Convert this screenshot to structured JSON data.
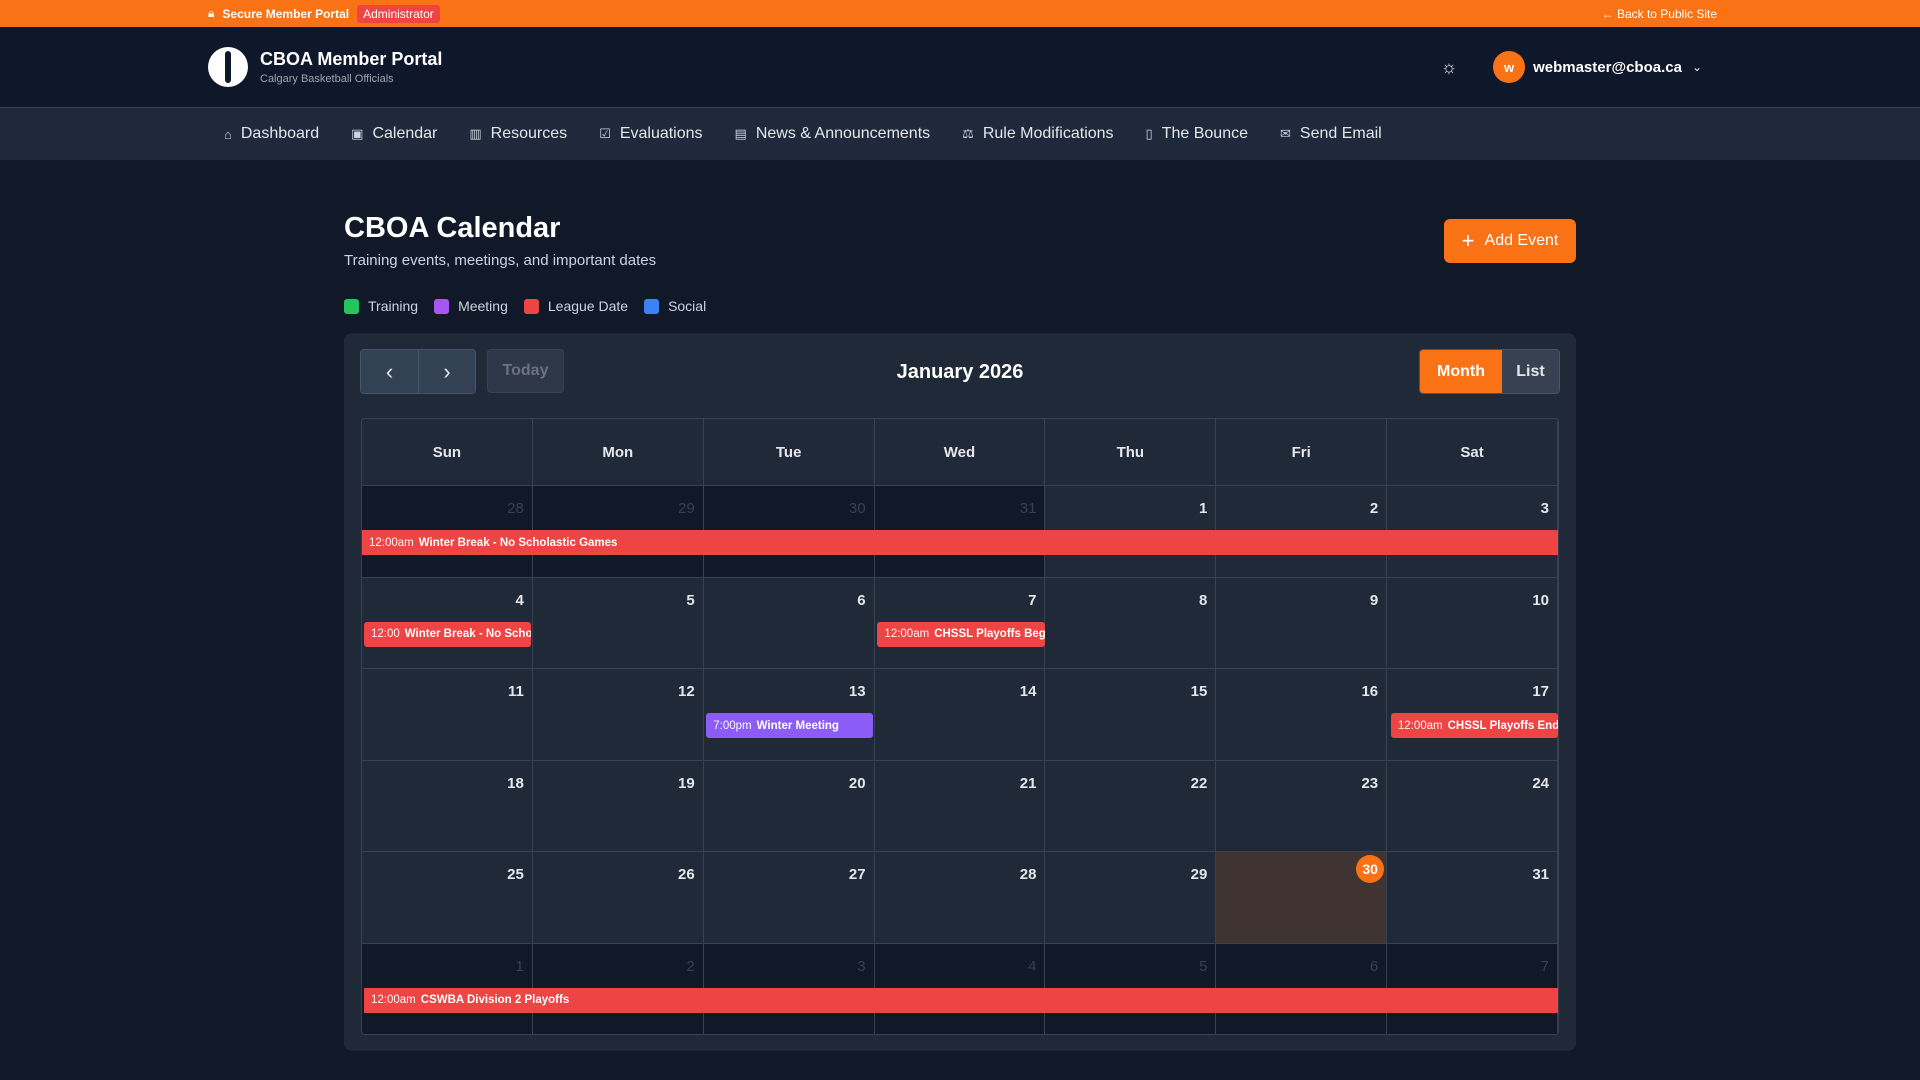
{
  "topbar": {
    "lock_icon": "lock-icon",
    "label": "Secure Member Portal",
    "role_badge": "Administrator",
    "back_link": "← Back to Public Site"
  },
  "header": {
    "title": "CBOA Member Portal",
    "subtitle": "Calgary Basketball Officials",
    "theme_icon": "sun-icon",
    "avatar_letter": "w",
    "user_email": "webmaster@cboa.ca"
  },
  "nav": [
    {
      "label": "Dashboard",
      "icon": "⌂",
      "icon_name": "home-icon"
    },
    {
      "label": "Calendar",
      "icon": "▣",
      "icon_name": "calendar-icon"
    },
    {
      "label": "Resources",
      "icon": "▥",
      "icon_name": "books-icon"
    },
    {
      "label": "Evaluations",
      "icon": "☑",
      "icon_name": "clipboard-icon"
    },
    {
      "label": "News & Announcements",
      "icon": "▤",
      "icon_name": "newspaper-icon"
    },
    {
      "label": "Rule Modifications",
      "icon": "⚖",
      "icon_name": "gavel-icon"
    },
    {
      "label": "The Bounce",
      "icon": "▯",
      "icon_name": "book-icon"
    },
    {
      "label": "Send Email",
      "icon": "✉",
      "icon_name": "mail-icon"
    }
  ],
  "page": {
    "title": "CBOA Calendar",
    "subtitle": "Training events, meetings, and important dates",
    "add_button": "Add Event"
  },
  "legend": [
    {
      "label": "Training",
      "color": "#22c55e"
    },
    {
      "label": "Meeting",
      "color": "#a855f7"
    },
    {
      "label": "League Date",
      "color": "#ef4444"
    },
    {
      "label": "Social",
      "color": "#3b82f6"
    }
  ],
  "calendar": {
    "prev": "‹",
    "next": "›",
    "today_label": "Today",
    "month_title": "January 2026",
    "views": [
      "Month",
      "List"
    ],
    "active_view": "Month",
    "weekdays": [
      "Sun",
      "Mon",
      "Tue",
      "Wed",
      "Thu",
      "Fri",
      "Sat"
    ],
    "colors": {
      "league": "#ef4444",
      "meeting": "#8b5cf6",
      "today": "#f97316"
    },
    "weeks": [
      {
        "days": [
          {
            "n": "28",
            "other": true
          },
          {
            "n": "29",
            "other": true
          },
          {
            "n": "30",
            "other": true
          },
          {
            "n": "31",
            "other": true
          },
          {
            "n": "1"
          },
          {
            "n": "2"
          },
          {
            "n": "3"
          }
        ],
        "events": [
          {
            "start_day": 0,
            "span": 7,
            "time": "12:00am",
            "title": "Winter Break - No Scholastic Games",
            "type": "league",
            "continues": true
          }
        ]
      },
      {
        "days": [
          {
            "n": "4"
          },
          {
            "n": "5"
          },
          {
            "n": "6"
          },
          {
            "n": "7"
          },
          {
            "n": "8"
          },
          {
            "n": "9"
          },
          {
            "n": "10"
          }
        ],
        "events": [
          {
            "start_day": 0,
            "span": 1,
            "time": "12:00",
            "title": "Winter Break - No Scholastic Games",
            "type": "league"
          },
          {
            "start_day": 3,
            "span": 1,
            "time": "12:00am",
            "title": "CHSSL Playoffs Begin",
            "type": "league"
          }
        ]
      },
      {
        "days": [
          {
            "n": "11"
          },
          {
            "n": "12"
          },
          {
            "n": "13"
          },
          {
            "n": "14"
          },
          {
            "n": "15"
          },
          {
            "n": "16"
          },
          {
            "n": "17"
          }
        ],
        "events": [
          {
            "start_day": 2,
            "span": 1,
            "time": "7:00pm",
            "title": "Winter Meeting",
            "type": "meeting"
          },
          {
            "start_day": 6,
            "span": 1,
            "time": "12:00am",
            "title": "CHSSL Playoffs End",
            "type": "league"
          }
        ]
      },
      {
        "days": [
          {
            "n": "18"
          },
          {
            "n": "19"
          },
          {
            "n": "20"
          },
          {
            "n": "21"
          },
          {
            "n": "22"
          },
          {
            "n": "23"
          },
          {
            "n": "24"
          }
        ],
        "events": []
      },
      {
        "days": [
          {
            "n": "25"
          },
          {
            "n": "26"
          },
          {
            "n": "27"
          },
          {
            "n": "28"
          },
          {
            "n": "29"
          },
          {
            "n": "30",
            "today": true
          },
          {
            "n": "31"
          }
        ],
        "events": []
      },
      {
        "days": [
          {
            "n": "1",
            "other": true
          },
          {
            "n": "2",
            "other": true
          },
          {
            "n": "3",
            "other": true
          },
          {
            "n": "4",
            "other": true
          },
          {
            "n": "5",
            "other": true
          },
          {
            "n": "6",
            "other": true
          },
          {
            "n": "7",
            "other": true
          }
        ],
        "events": [
          {
            "start_day": 0,
            "span": 7,
            "time": "12:00am",
            "title": "CSWBA Division 2 Playoffs",
            "type": "league",
            "continues": true
          }
        ]
      }
    ]
  }
}
